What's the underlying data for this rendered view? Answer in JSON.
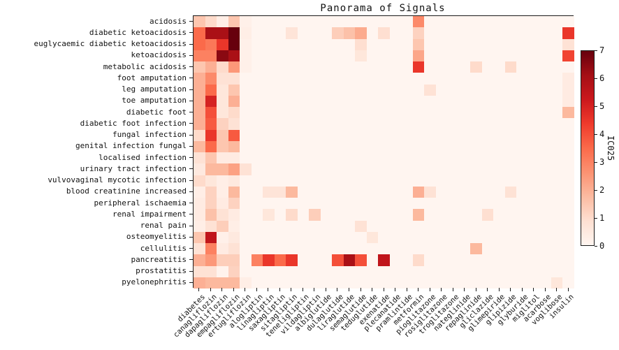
{
  "chart_data": {
    "type": "heatmap",
    "title": "Panorama of Signals",
    "x_tick_labels": [
      "diabetes",
      "canagliflozin",
      "dapagliflozin",
      "empagliflozin",
      "ertugliflozin",
      "alogliptin",
      "linagliptin",
      "saxagliptin",
      "sitagliptin",
      "teneligliptin",
      "vildagliptin",
      "albiglutide",
      "dulaglutide",
      "liraglutide",
      "semaglutide",
      "teduglutide",
      "exenatide",
      "plecanatide",
      "pramlintide",
      "metformin",
      "pioglitazone",
      "rosiglitazone",
      "troglitazone",
      "nateglinide",
      "repaglinide",
      "gliclazide",
      "glimepiride",
      "glipizide",
      "glyburide",
      "miglitol",
      "acarbose",
      "voglibose",
      "insulin"
    ],
    "y_tick_labels": [
      "acidosis",
      "diabetic ketoacidosis",
      "euglycaemic diabetic ketoacidosis",
      "ketoacidosis",
      "metabolic acidosis",
      "foot amputation",
      "leg amputation",
      "toe amputation",
      "diabetic foot",
      "diabetic foot infection",
      "fungal infection",
      "genital infection fungal",
      "localised infection",
      "urinary tract infection",
      "vulvovaginal mycotic infection",
      "blood creatinine increased",
      "peripheral ischaemia",
      "renal impairment",
      "renal pain",
      "osteomyelitis",
      "cellulitis",
      "pancreatitis",
      "prostatitis",
      "pyelonephritis"
    ],
    "values": [
      [
        1.5,
        1,
        0.3,
        1.5,
        0.2,
        0,
        0,
        0,
        0,
        0,
        0,
        0,
        0,
        0,
        0,
        0,
        0,
        0,
        0,
        2.8,
        0,
        0,
        0,
        0,
        0,
        0,
        0,
        0,
        0,
        0,
        0,
        0,
        0
      ],
      [
        3.5,
        6,
        6,
        7,
        0.3,
        0,
        0,
        0,
        0.7,
        0,
        0,
        0,
        1.3,
        1.6,
        2.1,
        0,
        0.9,
        0,
        0,
        1.2,
        0,
        0,
        0,
        0,
        0,
        0,
        0,
        0,
        0,
        0,
        0,
        0,
        4.5
      ],
      [
        3.5,
        3.2,
        4.5,
        7,
        0.2,
        0,
        0,
        0,
        0,
        0,
        0,
        0,
        0,
        0,
        0.9,
        0,
        0,
        0,
        0,
        1.5,
        0,
        0,
        0,
        0,
        0,
        0,
        0,
        0,
        0,
        0,
        0,
        0,
        0.8
      ],
      [
        3,
        3,
        6.5,
        6,
        0.2,
        0,
        0,
        0,
        0,
        0,
        0,
        0,
        0,
        0,
        0.6,
        0,
        0,
        0,
        0,
        2.2,
        0,
        0,
        0,
        0,
        0,
        0,
        0,
        0,
        0,
        0,
        0,
        0,
        4.2
      ],
      [
        1.5,
        2,
        1,
        2.5,
        0.2,
        0,
        0,
        0,
        0,
        0,
        0,
        0,
        0,
        0,
        0,
        0,
        0,
        0,
        0,
        4.5,
        0,
        0,
        0,
        0,
        1,
        0,
        0,
        1,
        0,
        0,
        0,
        0,
        0
      ],
      [
        2,
        2.8,
        0.8,
        0.8,
        0,
        0,
        0,
        0,
        0,
        0,
        0,
        0,
        0,
        0,
        0,
        0,
        0,
        0,
        0,
        0,
        0,
        0,
        0,
        0,
        0,
        0,
        0,
        0,
        0,
        0,
        0,
        0,
        0.4
      ],
      [
        2,
        3.5,
        0.6,
        1.5,
        0,
        0,
        0,
        0,
        0,
        0,
        0,
        0,
        0,
        0,
        0,
        0,
        0,
        0,
        0,
        0,
        0.8,
        0,
        0,
        0,
        0,
        0,
        0,
        0,
        0,
        0,
        0,
        0,
        0.4
      ],
      [
        2,
        5,
        0.6,
        2,
        0,
        0,
        0,
        0,
        0,
        0,
        0,
        0,
        0,
        0,
        0,
        0,
        0,
        0,
        0,
        0,
        0,
        0,
        0,
        0,
        0,
        0,
        0,
        0,
        0,
        0,
        0,
        0,
        0.4
      ],
      [
        2,
        4,
        0.6,
        1,
        0,
        0,
        0,
        0,
        0,
        0,
        0,
        0,
        0,
        0,
        0,
        0,
        0,
        0,
        0,
        0,
        0,
        0,
        0,
        0,
        0,
        0,
        0,
        0,
        0,
        0,
        0,
        0,
        1.8
      ],
      [
        2,
        3.8,
        1.2,
        0.8,
        0,
        0,
        0,
        0,
        0,
        0,
        0,
        0,
        0,
        0,
        0,
        0,
        0,
        0,
        0,
        0,
        0,
        0,
        0,
        0,
        0,
        0,
        0,
        0,
        0,
        0,
        0,
        0,
        0
      ],
      [
        1,
        4.5,
        1.5,
        3.8,
        0,
        0,
        0,
        0,
        0,
        0,
        0,
        0,
        0,
        0,
        0,
        0,
        0,
        0,
        0,
        0,
        0,
        0,
        0,
        0,
        0,
        0,
        0,
        0,
        0,
        0,
        0,
        0,
        0
      ],
      [
        1.8,
        3.5,
        1.5,
        1.8,
        0,
        0,
        0,
        0,
        0,
        0,
        0,
        0,
        0,
        0,
        0,
        0,
        0,
        0,
        0,
        0,
        0,
        0,
        0,
        0,
        0,
        0,
        0,
        0,
        0,
        0,
        0,
        0,
        0
      ],
      [
        0.8,
        1.5,
        0.4,
        0.4,
        0,
        0,
        0,
        0,
        0,
        0,
        0,
        0,
        0,
        0,
        0,
        0,
        0,
        0,
        0,
        0,
        0,
        0,
        0,
        0,
        0,
        0,
        0,
        0,
        0,
        0,
        0,
        0,
        0
      ],
      [
        0.5,
        1.8,
        1.8,
        2.3,
        0.8,
        0,
        0,
        0,
        0,
        0,
        0,
        0,
        0,
        0,
        0,
        0,
        0,
        0,
        0,
        0,
        0,
        0,
        0,
        0,
        0,
        0,
        0,
        0,
        0,
        0,
        0,
        0,
        0
      ],
      [
        1,
        0.6,
        0.3,
        0.5,
        0,
        0,
        0,
        0,
        0,
        0,
        0,
        0,
        0,
        0,
        0,
        0,
        0,
        0,
        0,
        0,
        0,
        0,
        0,
        0,
        0,
        0,
        0,
        0,
        0,
        0,
        0,
        0,
        0
      ],
      [
        0.3,
        1.2,
        0.3,
        1.8,
        0,
        0,
        0.7,
        0.7,
        1.8,
        0,
        0,
        0,
        0,
        0,
        0,
        0,
        0,
        0,
        0,
        2,
        0.8,
        0,
        0,
        0,
        0,
        0,
        0,
        0.8,
        0,
        0,
        0,
        0,
        0
      ],
      [
        0.4,
        1.2,
        0.4,
        1.2,
        0,
        0,
        0,
        0,
        0,
        0,
        0,
        0,
        0,
        0,
        0,
        0,
        0,
        0,
        0,
        0,
        0,
        0,
        0,
        0,
        0,
        0,
        0,
        0,
        0,
        0,
        0,
        0,
        0
      ],
      [
        0.4,
        1.6,
        0.8,
        0.4,
        0,
        0,
        0.6,
        0,
        1,
        0,
        1.3,
        0,
        0,
        0,
        0,
        0,
        0,
        0,
        0,
        1.8,
        0,
        0,
        0,
        0,
        0,
        0.9,
        0,
        0,
        0,
        0,
        0,
        0,
        0
      ],
      [
        0.3,
        0.8,
        1.3,
        0.3,
        0,
        0,
        0,
        0,
        0,
        0,
        0,
        0,
        0,
        0,
        0.8,
        0,
        0,
        0,
        0,
        0,
        0,
        0,
        0,
        0,
        0,
        0,
        0,
        0,
        0,
        0,
        0,
        0,
        0
      ],
      [
        1.5,
        5.5,
        0.2,
        0.5,
        0,
        0,
        0,
        0,
        0,
        0,
        0,
        0,
        0,
        0,
        0,
        0.6,
        0,
        0,
        0,
        0,
        0,
        0,
        0,
        0,
        0,
        0,
        0,
        0,
        0,
        0,
        0,
        0,
        0
      ],
      [
        0.8,
        3,
        0.4,
        0.8,
        0,
        0,
        0,
        0,
        0,
        0,
        0,
        0,
        0,
        0,
        0,
        0,
        0,
        0,
        0,
        0,
        0,
        0,
        0,
        0,
        1.8,
        0,
        0,
        0,
        0,
        0,
        0,
        0,
        0
      ],
      [
        2,
        2.5,
        1.3,
        1.3,
        0,
        3,
        4.5,
        3.5,
        4.5,
        0,
        0,
        0,
        4,
        6,
        4,
        0,
        5.5,
        0,
        0,
        1,
        0,
        0,
        0,
        0,
        0,
        0,
        0,
        0,
        0,
        0,
        0,
        0,
        0
      ],
      [
        0.8,
        0.8,
        0.1,
        1.2,
        0,
        0,
        0,
        0,
        0,
        0,
        0,
        0,
        0,
        0,
        0,
        0,
        0,
        0,
        0,
        0,
        0,
        0,
        0,
        0,
        0,
        0,
        0,
        0,
        0,
        0,
        0,
        0,
        0
      ],
      [
        2,
        1.8,
        1.8,
        1.8,
        0.3,
        0,
        0,
        0,
        0,
        0,
        0,
        0,
        0,
        0,
        0,
        0,
        0,
        0,
        0,
        0,
        0,
        0,
        0,
        0,
        0,
        0,
        0,
        0,
        0,
        0,
        0,
        0.6,
        0
      ]
    ],
    "colorbar": {
      "label": "IC025",
      "min": 0,
      "max": 7,
      "tick_labels": [
        "0",
        "1",
        "2",
        "3",
        "4",
        "5",
        "6",
        "7"
      ]
    },
    "colormap": {
      "name": "Reds",
      "stops": [
        "#fff5f0",
        "#fee0d2",
        "#fcbba1",
        "#fc9272",
        "#fb6a4a",
        "#ef3b2c",
        "#cb181d",
        "#a50f15",
        "#67000d"
      ]
    }
  }
}
